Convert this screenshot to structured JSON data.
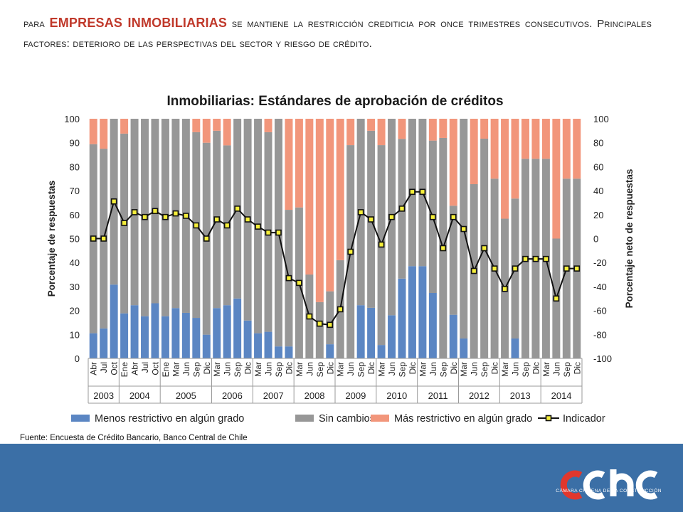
{
  "headline": {
    "prefix": "para ",
    "highlight": "EMPRESAS INMOBILIARIAS",
    "rest": " se mantiene la restricción crediticia por once trimestres consecutivos. Principales factores: deterioro de las perspectivas del sector y riesgo de crédito."
  },
  "source": "Fuente: Encuesta de Crédito Bancario, Banco Central de Chile",
  "logo": {
    "text": "cchc",
    "subtitle": "CÁMARA CHILENA DE LA CONSTRUCCIÓN"
  },
  "colors": {
    "menos": "#5b86c3",
    "sin": "#979797",
    "mas": "#f2967b",
    "indicator": "#111111",
    "marker": "#f5ee3b",
    "footer": "#3b6fa6"
  },
  "chart_data": {
    "type": "bar",
    "stacked": true,
    "title": "Inmobiliarias: Estándares de aprobación de créditos",
    "ylabel": "Porcentaje de respuestas",
    "y2label": "Porcentaje neto de respuestas",
    "ylim": [
      0,
      100
    ],
    "y2lim": [
      -100,
      100
    ],
    "yticks": [
      "0",
      "10",
      "20",
      "30",
      "40",
      "50",
      "60",
      "70",
      "80",
      "90",
      "100"
    ],
    "y2ticks": [
      "-100",
      "-80",
      "-60",
      "-40",
      "-20",
      "0",
      "20",
      "40",
      "60",
      "80",
      "100"
    ],
    "categories": [
      "Abr",
      "Jul",
      "Oct",
      "Ene",
      "Abr",
      "Jul",
      "Oct",
      "Ene",
      "Mar",
      "Jun",
      "Sep",
      "Dic",
      "Mar",
      "Jun",
      "Sep",
      "Dic",
      "Mar",
      "Jun",
      "Sep",
      "Dic",
      "Mar",
      "Jun",
      "Sep",
      "Dic",
      "Mar",
      "Jun",
      "Sep",
      "Dic",
      "Mar",
      "Jun",
      "Sep",
      "Dic",
      "Mar",
      "Jun",
      "Sep",
      "Dic",
      "Mar",
      "Jun",
      "Sep",
      "Dic",
      "Mar",
      "Jun",
      "Sep",
      "Dic",
      "Mar",
      "Jun",
      "Sep",
      "Dic"
    ],
    "years": [
      {
        "label": "2003",
        "count": 3
      },
      {
        "label": "2004",
        "count": 4
      },
      {
        "label": "2005",
        "count": 5
      },
      {
        "label": "2006",
        "count": 4
      },
      {
        "label": "2007",
        "count": 4
      },
      {
        "label": "2008",
        "count": 4
      },
      {
        "label": "2009",
        "count": 4
      },
      {
        "label": "2010",
        "count": 4
      },
      {
        "label": "2011",
        "count": 4
      },
      {
        "label": "2012",
        "count": 4
      },
      {
        "label": "2013",
        "count": 4
      },
      {
        "label": "2014",
        "count": 4
      }
    ],
    "series": [
      {
        "name": "Menos restrictivo en algún grado",
        "values": [
          10.5,
          12.5,
          30.8,
          18.8,
          22.2,
          17.6,
          23.0,
          17.6,
          21.0,
          19.0,
          16.9,
          9.9,
          21.0,
          22.2,
          25.0,
          15.8,
          10.5,
          11.1,
          5.0,
          5.0,
          0,
          0,
          0,
          5.9,
          0,
          0,
          22.2,
          21.1,
          5.6,
          18.0,
          33.3,
          38.5,
          38.5,
          27.3,
          0,
          18.2,
          8.3,
          0,
          0,
          0,
          0,
          8.3,
          0,
          0,
          0,
          0,
          0,
          0
        ]
      },
      {
        "name": "Sin cambios",
        "values": [
          78.9,
          75.0,
          69.2,
          75.0,
          77.8,
          82.4,
          77.0,
          82.4,
          79.0,
          81.0,
          77.5,
          80.1,
          74.0,
          66.7,
          75.0,
          84.2,
          89.5,
          83.3,
          95.0,
          57.0,
          63.0,
          35.0,
          23.5,
          22.1,
          41.0,
          89.0,
          77.8,
          73.9,
          83.4,
          82.0,
          58.3,
          61.5,
          61.5,
          63.6,
          92.0,
          45.5,
          91.7,
          72.7,
          91.7,
          75.0,
          58.3,
          58.4,
          83.3,
          83.3,
          83.3,
          50.0,
          75.0,
          75.0
        ]
      },
      {
        "name": "Más restrictivo en algún grado",
        "values": [
          10.6,
          12.5,
          0,
          6.2,
          0,
          0,
          0,
          0,
          0,
          0,
          5.6,
          10.0,
          5.0,
          11.1,
          0,
          0,
          0,
          5.6,
          0,
          38.0,
          37.0,
          65.0,
          76.5,
          72.0,
          59.0,
          11.0,
          0,
          5.0,
          11.0,
          0,
          8.4,
          0,
          0,
          9.1,
          8.0,
          36.3,
          0,
          27.3,
          8.3,
          25.0,
          41.7,
          33.3,
          16.7,
          16.7,
          16.7,
          50.0,
          25.0,
          25.0
        ]
      },
      {
        "name": "Indicador",
        "values": [
          0,
          0,
          31,
          13,
          22,
          18,
          23,
          18,
          21,
          19,
          11,
          0,
          16,
          11,
          25,
          16,
          10,
          5,
          5,
          -33,
          -37,
          -65,
          -71,
          -72,
          -59,
          -11,
          22,
          16,
          -5,
          18,
          25,
          39,
          39,
          18,
          -8,
          18,
          8,
          -27,
          -8,
          -25,
          -42,
          -25,
          -17,
          -17,
          -17,
          -50,
          -25,
          -25
        ]
      }
    ]
  }
}
